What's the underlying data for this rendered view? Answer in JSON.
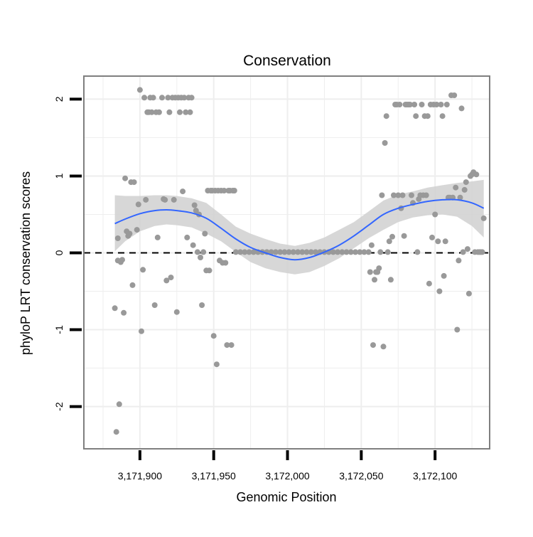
{
  "chart_data": {
    "type": "scatter",
    "title": "Conservation",
    "xlabel": "Genomic Position",
    "ylabel": "phyloP LRT conservation scores",
    "xlim": [
      3171862,
      3172137
    ],
    "ylim": [
      -2.55,
      2.3
    ],
    "x_ticks": [
      3171900,
      3171950,
      3172000,
      3172050,
      3172100
    ],
    "x_tick_labels": [
      "3,171,900",
      "3,171,950",
      "3,172,000",
      "3,172,050",
      "3,172,100"
    ],
    "y_ticks": [
      -2,
      -1,
      0,
      1,
      2
    ],
    "y_tick_labels": [
      "-2",
      "-1",
      "0",
      "1",
      "2"
    ],
    "x_minor_grid": [
      3171875,
      3171925,
      3171975,
      3172025,
      3172075,
      3172125
    ],
    "y_minor_grid": [
      -1.5,
      -0.5,
      0.5,
      1.5
    ],
    "reference_line": {
      "y": 0,
      "style": "dashed"
    },
    "colors": {
      "points": "#999999",
      "smooth_line": "#3366FF",
      "ribbon": "#D0D0D0",
      "border": "#7F7F7F",
      "grid": "#EEEEEE"
    },
    "points": [
      [
        3171883,
        -0.72
      ],
      [
        3171884,
        -2.33
      ],
      [
        3171885,
        -0.1
      ],
      [
        3171885,
        0.19
      ],
      [
        3171886,
        -1.97
      ],
      [
        3171887,
        -0.12
      ],
      [
        3171888,
        -0.09
      ],
      [
        3171889,
        -0.78
      ],
      [
        3171890,
        0.97
      ],
      [
        3171891,
        0.28
      ],
      [
        3171892,
        0.22
      ],
      [
        3171893,
        0.25
      ],
      [
        3171894,
        0.92
      ],
      [
        3171895,
        -0.42
      ],
      [
        3171896,
        0.92
      ],
      [
        3171898,
        0.3
      ],
      [
        3171899,
        0.63
      ],
      [
        3171900,
        2.12
      ],
      [
        3171901,
        -1.02
      ],
      [
        3171902,
        -0.22
      ],
      [
        3171903,
        2.02
      ],
      [
        3171904,
        0.69
      ],
      [
        3171905,
        1.83
      ],
      [
        3171906,
        1.83
      ],
      [
        3171907,
        2.02
      ],
      [
        3171908,
        1.83
      ],
      [
        3171909,
        2.02
      ],
      [
        3171910,
        -0.68
      ],
      [
        3171911,
        1.83
      ],
      [
        3171912,
        0.2
      ],
      [
        3171913,
        1.83
      ],
      [
        3171915,
        2.02
      ],
      [
        3171916,
        0.7
      ],
      [
        3171917,
        0.69
      ],
      [
        3171918,
        -0.36
      ],
      [
        3171919,
        2.02
      ],
      [
        3171920,
        1.83
      ],
      [
        3171921,
        -0.32
      ],
      [
        3171922,
        2.02
      ],
      [
        3171923,
        0.69
      ],
      [
        3171924,
        2.02
      ],
      [
        3171925,
        -0.77
      ],
      [
        3171926,
        2.02
      ],
      [
        3171927,
        1.83
      ],
      [
        3171928,
        2.02
      ],
      [
        3171929,
        0.8
      ],
      [
        3171930,
        2.02
      ],
      [
        3171931,
        1.83
      ],
      [
        3171932,
        0.2
      ],
      [
        3171933,
        2.02
      ],
      [
        3171934,
        1.83
      ],
      [
        3171935,
        2.02
      ],
      [
        3171936,
        0.1
      ],
      [
        3171937,
        0.62
      ],
      [
        3171938,
        0.55
      ],
      [
        3171939,
        0.01
      ],
      [
        3171940,
        0.5
      ],
      [
        3171941,
        -0.06
      ],
      [
        3171942,
        -0.68
      ],
      [
        3171943,
        0.01
      ],
      [
        3171944,
        0.25
      ],
      [
        3171945,
        -0.23
      ],
      [
        3171946,
        0.81
      ],
      [
        3171947,
        -0.23
      ],
      [
        3171948,
        0.81
      ],
      [
        3171949,
        0.81
      ],
      [
        3171950,
        -1.08
      ],
      [
        3171951,
        0.81
      ],
      [
        3171952,
        -1.45
      ],
      [
        3171953,
        0.81
      ],
      [
        3171954,
        -0.1
      ],
      [
        3171955,
        0.81
      ],
      [
        3171956,
        -0.13
      ],
      [
        3171957,
        0.81
      ],
      [
        3171958,
        -0.13
      ],
      [
        3171959,
        -1.2
      ],
      [
        3171960,
        0.81
      ],
      [
        3171961,
        0.81
      ],
      [
        3171962,
        -1.2
      ],
      [
        3171963,
        0.81
      ],
      [
        3171964,
        0.81
      ],
      [
        3171965,
        0.01
      ],
      [
        3171968,
        0.01
      ],
      [
        3171971,
        0.01
      ],
      [
        3171974,
        0.01
      ],
      [
        3171977,
        0.01
      ],
      [
        3171980,
        0.01
      ],
      [
        3171983,
        0.01
      ],
      [
        3171986,
        0.01
      ],
      [
        3171989,
        0.01
      ],
      [
        3171992,
        0.01
      ],
      [
        3171995,
        0.01
      ],
      [
        3171998,
        0.01
      ],
      [
        3172001,
        0.01
      ],
      [
        3172004,
        0.01
      ],
      [
        3172007,
        0.01
      ],
      [
        3172010,
        0.01
      ],
      [
        3172013,
        0.01
      ],
      [
        3172016,
        0.01
      ],
      [
        3172019,
        0.01
      ],
      [
        3172022,
        0.01
      ],
      [
        3172025,
        0.01
      ],
      [
        3172028,
        0.01
      ],
      [
        3172031,
        0.01
      ],
      [
        3172034,
        0.01
      ],
      [
        3172037,
        0.01
      ],
      [
        3172040,
        0.01
      ],
      [
        3172043,
        0.01
      ],
      [
        3172046,
        0.01
      ],
      [
        3172049,
        0.01
      ],
      [
        3172052,
        0.01
      ],
      [
        3172055,
        0.01
      ],
      [
        3172056,
        -0.25
      ],
      [
        3172057,
        0.1
      ],
      [
        3172058,
        -1.2
      ],
      [
        3172059,
        -0.35
      ],
      [
        3172060,
        -0.25
      ],
      [
        3172061,
        -0.25
      ],
      [
        3172062,
        -0.2
      ],
      [
        3172063,
        0.01
      ],
      [
        3172064,
        0.75
      ],
      [
        3172065,
        -1.22
      ],
      [
        3172066,
        1.43
      ],
      [
        3172067,
        1.78
      ],
      [
        3172068,
        0.01
      ],
      [
        3172069,
        0.15
      ],
      [
        3172070,
        -0.35
      ],
      [
        3172071,
        0.21
      ],
      [
        3172072,
        0.75
      ],
      [
        3172073,
        1.93
      ],
      [
        3172074,
        1.93
      ],
      [
        3172075,
        0.75
      ],
      [
        3172076,
        1.93
      ],
      [
        3172077,
        0.58
      ],
      [
        3172078,
        0.75
      ],
      [
        3172079,
        0.22
      ],
      [
        3172080,
        1.93
      ],
      [
        3172081,
        1.93
      ],
      [
        3172082,
        1.93
      ],
      [
        3172083,
        1.93
      ],
      [
        3172084,
        0.75
      ],
      [
        3172085,
        0.65
      ],
      [
        3172086,
        1.93
      ],
      [
        3172087,
        1.78
      ],
      [
        3172088,
        0.01
      ],
      [
        3172089,
        0.7
      ],
      [
        3172090,
        0.75
      ],
      [
        3172091,
        1.93
      ],
      [
        3172092,
        0.75
      ],
      [
        3172093,
        1.78
      ],
      [
        3172094,
        0.75
      ],
      [
        3172095,
        1.78
      ],
      [
        3172096,
        -0.4
      ],
      [
        3172097,
        1.93
      ],
      [
        3172098,
        0.2
      ],
      [
        3172099,
        1.93
      ],
      [
        3172100,
        0.5
      ],
      [
        3172101,
        1.93
      ],
      [
        3172102,
        0.15
      ],
      [
        3172103,
        -0.5
      ],
      [
        3172104,
        1.93
      ],
      [
        3172105,
        1.78
      ],
      [
        3172106,
        -0.3
      ],
      [
        3172107,
        0.15
      ],
      [
        3172108,
        1.93
      ],
      [
        3172109,
        0.72
      ],
      [
        3172110,
        0.72
      ],
      [
        3172111,
        2.05
      ],
      [
        3172112,
        0.72
      ],
      [
        3172113,
        2.05
      ],
      [
        3172114,
        0.85
      ],
      [
        3172115,
        -1.0
      ],
      [
        3172116,
        -0.1
      ],
      [
        3172117,
        0.72
      ],
      [
        3172118,
        1.88
      ],
      [
        3172119,
        0.01
      ],
      [
        3172120,
        0.82
      ],
      [
        3172121,
        0.92
      ],
      [
        3172122,
        0.05
      ],
      [
        3172123,
        -0.53
      ],
      [
        3172124,
        1.0
      ],
      [
        3172125,
        1.02
      ],
      [
        3172126,
        1.05
      ],
      [
        3172127,
        0.01
      ],
      [
        3172128,
        1.02
      ],
      [
        3172129,
        0.01
      ],
      [
        3172130,
        0.01
      ],
      [
        3172131,
        0.01
      ],
      [
        3172132,
        0.01
      ],
      [
        3172133,
        0.45
      ]
    ],
    "smooth": {
      "x": [
        3171883,
        3171890,
        3171900,
        3171910,
        3171918,
        3171925,
        3171935,
        3171945,
        3171955,
        3171965,
        3171975,
        3171985,
        3171995,
        3172005,
        3172015,
        3172025,
        3172035,
        3172045,
        3172055,
        3172065,
        3172075,
        3172085,
        3172095,
        3172105,
        3172115,
        3172125,
        3172133
      ],
      "y": [
        0.38,
        0.44,
        0.51,
        0.55,
        0.56,
        0.55,
        0.52,
        0.45,
        0.32,
        0.18,
        0.07,
        0.0,
        -0.06,
        -0.09,
        -0.06,
        0.01,
        0.1,
        0.22,
        0.36,
        0.5,
        0.58,
        0.63,
        0.67,
        0.69,
        0.69,
        0.65,
        0.58
      ],
      "lower": [
        0.02,
        0.15,
        0.28,
        0.35,
        0.37,
        0.36,
        0.33,
        0.25,
        0.15,
        0.01,
        -0.12,
        -0.2,
        -0.25,
        -0.28,
        -0.25,
        -0.17,
        -0.07,
        0.06,
        0.19,
        0.3,
        0.4,
        0.46,
        0.49,
        0.5,
        0.47,
        0.35,
        0.2
      ],
      "upper": [
        0.75,
        0.74,
        0.74,
        0.75,
        0.75,
        0.74,
        0.71,
        0.65,
        0.5,
        0.34,
        0.25,
        0.18,
        0.12,
        0.09,
        0.13,
        0.2,
        0.3,
        0.4,
        0.54,
        0.68,
        0.76,
        0.8,
        0.85,
        0.88,
        0.91,
        0.93,
        0.95
      ]
    }
  }
}
